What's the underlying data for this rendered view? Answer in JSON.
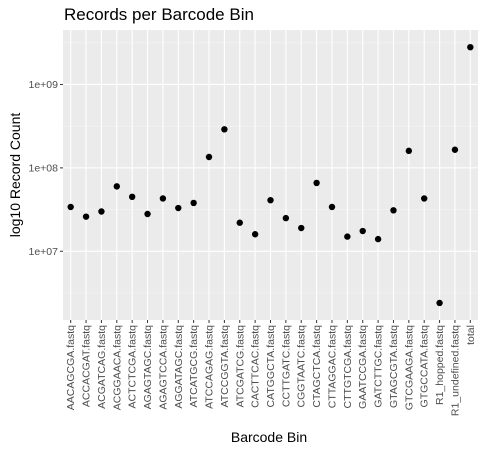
{
  "chart_data": {
    "type": "scatter",
    "title": "Records per Barcode Bin",
    "xlabel": "Barcode Bin",
    "ylabel": "log10 Record Count",
    "y_scale": "log10",
    "ylim": [
      1500000,
      4500000000
    ],
    "y_ticks": [
      {
        "value": 10000000,
        "label": "1e+07"
      },
      {
        "value": 100000000,
        "label": "1e+08"
      },
      {
        "value": 1000000000,
        "label": "1e+09"
      }
    ],
    "grid": true,
    "legend": "none",
    "colors": {
      "panel": "#ebebeb",
      "grid_major": "#ffffff",
      "grid_minor": "#f4f4f4",
      "point": "#000000"
    },
    "categories": [
      "AACAGCGA.fastq",
      "ACCACGAT.fastq",
      "ACGATCAG.fastq",
      "ACGGAACA.fastq",
      "ACTCTCGA.fastq",
      "AGAGTAGC.fastq",
      "AGAGTCCA.fastq",
      "AGGATAGC.fastq",
      "ATCATGCG.fastq",
      "ATCCAGAG.fastq",
      "ATCCGGTA.fastq",
      "ATCGATCG.fastq",
      "CACTTCAC.fastq",
      "CATGGCTA.fastq",
      "CCTTGATC.fastq",
      "CGGTAATC.fastq",
      "CTAGCTCA.fastq",
      "CTTAGGAC.fastq",
      "CTTGTCGA.fastq",
      "GAATCCGA.fastq",
      "GATCTTGC.fastq",
      "GTAGCGTA.fastq",
      "GTCGAAGA.fastq",
      "GTGCCATA.fastq",
      "R1_hopped.fastq",
      "R1_undefined.fastq",
      "total"
    ],
    "values": [
      34000000,
      26000000,
      30000000,
      60000000,
      45000000,
      28000000,
      43000000,
      33000000,
      38000000,
      135000000,
      290000000,
      22000000,
      16000000,
      41000000,
      25000000,
      19000000,
      66000000,
      34000000,
      15000000,
      17500000,
      14000000,
      31000000,
      160000000,
      43000000,
      2400000,
      165000000,
      2800000000
    ]
  }
}
